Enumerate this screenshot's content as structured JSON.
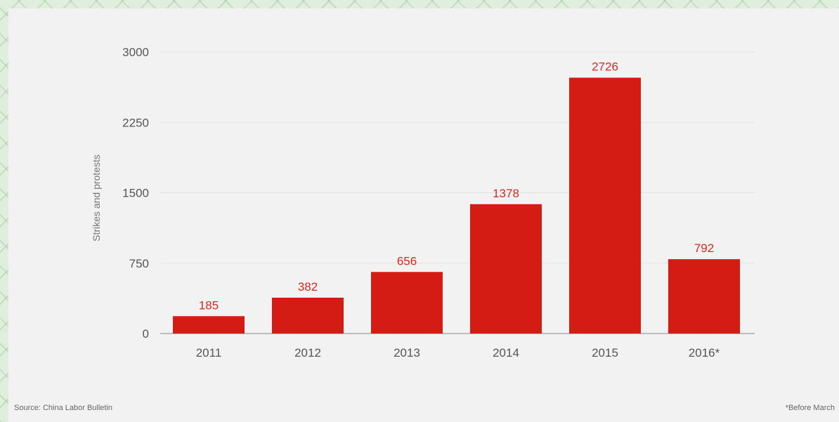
{
  "chart_data": {
    "type": "bar",
    "categories": [
      "2011",
      "2012",
      "2013",
      "2014",
      "2015",
      "2016*"
    ],
    "values": [
      185,
      382,
      656,
      1378,
      2726,
      792
    ],
    "data_labels": [
      "185",
      "382",
      "656",
      "1378",
      "2726",
      "792"
    ],
    "title": "",
    "xlabel": "",
    "ylabel": "Strikes and protests",
    "ylim": [
      0,
      3000
    ],
    "yticks": [
      0,
      750,
      1500,
      2250,
      3000
    ],
    "ytick_labels": [
      "0",
      "750",
      "1500",
      "2250",
      "3000"
    ],
    "grid": true,
    "bar_color": "#d41c14",
    "label_color": "#d42a22"
  },
  "source": "Source: China Labor Bulletin",
  "footnote": "*Before March"
}
